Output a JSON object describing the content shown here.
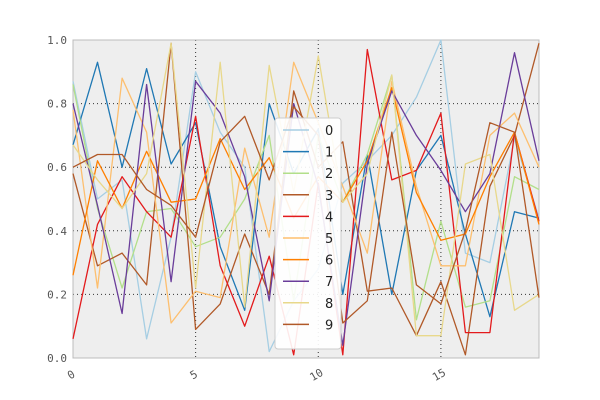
{
  "chart_data": {
    "type": "line",
    "title": "",
    "xlabel": "",
    "ylabel": "",
    "xlim": [
      0,
      19
    ],
    "ylim": [
      0.0,
      1.0
    ],
    "xticks": [
      0,
      5,
      10,
      15
    ],
    "xtick_labels": [
      "0",
      "5",
      "10",
      "15"
    ],
    "yticks": [
      0.0,
      0.2,
      0.4,
      0.6,
      0.8,
      1.0
    ],
    "ytick_labels": [
      "0.0",
      "0.2",
      "0.4",
      "0.6",
      "0.8",
      "1.0"
    ],
    "grid": "dotted, at major ticks",
    "background": "#eeeeee",
    "legend_position": "center",
    "x": [
      0,
      1,
      2,
      3,
      4,
      5,
      6,
      7,
      8,
      9,
      10,
      11,
      12,
      13,
      14,
      15,
      16,
      17,
      18,
      19
    ],
    "series": [
      {
        "name": "0",
        "color": "#a6cee3",
        "values": [
          0.87,
          0.5,
          0.56,
          0.06,
          0.38,
          0.9,
          0.71,
          0.6,
          0.02,
          0.18,
          0.28,
          0.55,
          0.62,
          0.7,
          0.82,
          1.0,
          0.33,
          0.3,
          0.69,
          0.44
        ]
      },
      {
        "name": "1",
        "color": "#1f78b4",
        "values": [
          0.67,
          0.93,
          0.6,
          0.91,
          0.61,
          0.74,
          0.35,
          0.15,
          0.8,
          0.58,
          0.72,
          0.2,
          0.64,
          0.2,
          0.59,
          0.7,
          0.39,
          0.13,
          0.46,
          0.44
        ]
      },
      {
        "name": "2",
        "color": "#b2df8a",
        "values": [
          0.86,
          0.47,
          0.22,
          0.46,
          0.47,
          0.35,
          0.38,
          0.5,
          0.7,
          0.18,
          0.7,
          0.49,
          0.64,
          0.89,
          0.12,
          0.43,
          0.16,
          0.18,
          0.57,
          0.53
        ]
      },
      {
        "name": "3",
        "color": "#b15928",
        "values": [
          0.58,
          0.29,
          0.33,
          0.23,
          0.99,
          0.09,
          0.17,
          0.39,
          0.2,
          0.84,
          0.6,
          0.68,
          0.21,
          0.22,
          0.07,
          0.24,
          0.01,
          0.54,
          0.7,
          0.99
        ]
      },
      {
        "name": "4",
        "color": "#e31a1c",
        "values": [
          0.06,
          0.42,
          0.57,
          0.46,
          0.38,
          0.76,
          0.29,
          0.1,
          0.32,
          0.01,
          0.55,
          0.01,
          0.97,
          0.56,
          0.59,
          0.77,
          0.08,
          0.08,
          0.71,
          0.43
        ]
      },
      {
        "name": "5",
        "color": "#fdbf6f",
        "values": [
          0.78,
          0.22,
          0.88,
          0.71,
          0.11,
          0.21,
          0.19,
          0.66,
          0.38,
          0.93,
          0.74,
          0.54,
          0.33,
          0.87,
          0.54,
          0.29,
          0.29,
          0.7,
          0.77,
          0.6
        ]
      },
      {
        "name": "6",
        "color": "#ff7f00",
        "values": [
          0.26,
          0.62,
          0.47,
          0.65,
          0.49,
          0.5,
          0.69,
          0.53,
          0.63,
          0.44,
          0.57,
          0.49,
          0.62,
          0.85,
          0.52,
          0.37,
          0.39,
          0.57,
          0.71,
          0.42
        ]
      },
      {
        "name": "7",
        "color": "#6a3d9a",
        "values": [
          0.8,
          0.48,
          0.14,
          0.86,
          0.24,
          0.87,
          0.77,
          0.57,
          0.18,
          0.8,
          0.54,
          0.04,
          0.61,
          0.84,
          0.7,
          0.59,
          0.46,
          0.58,
          0.96,
          0.62
        ]
      },
      {
        "name": "8",
        "color": "#e8d88b",
        "values": [
          0.67,
          0.56,
          0.47,
          0.58,
          0.99,
          0.22,
          0.93,
          0.16,
          0.92,
          0.52,
          0.95,
          0.49,
          0.58,
          0.89,
          0.07,
          0.07,
          0.61,
          0.64,
          0.15,
          0.2
        ]
      },
      {
        "name": "9",
        "color": "#b15928",
        "values": [
          0.6,
          0.64,
          0.64,
          0.53,
          0.48,
          0.38,
          0.68,
          0.76,
          0.56,
          0.79,
          0.7,
          0.11,
          0.18,
          0.71,
          0.23,
          0.17,
          0.4,
          0.74,
          0.71,
          0.19
        ]
      }
    ]
  }
}
